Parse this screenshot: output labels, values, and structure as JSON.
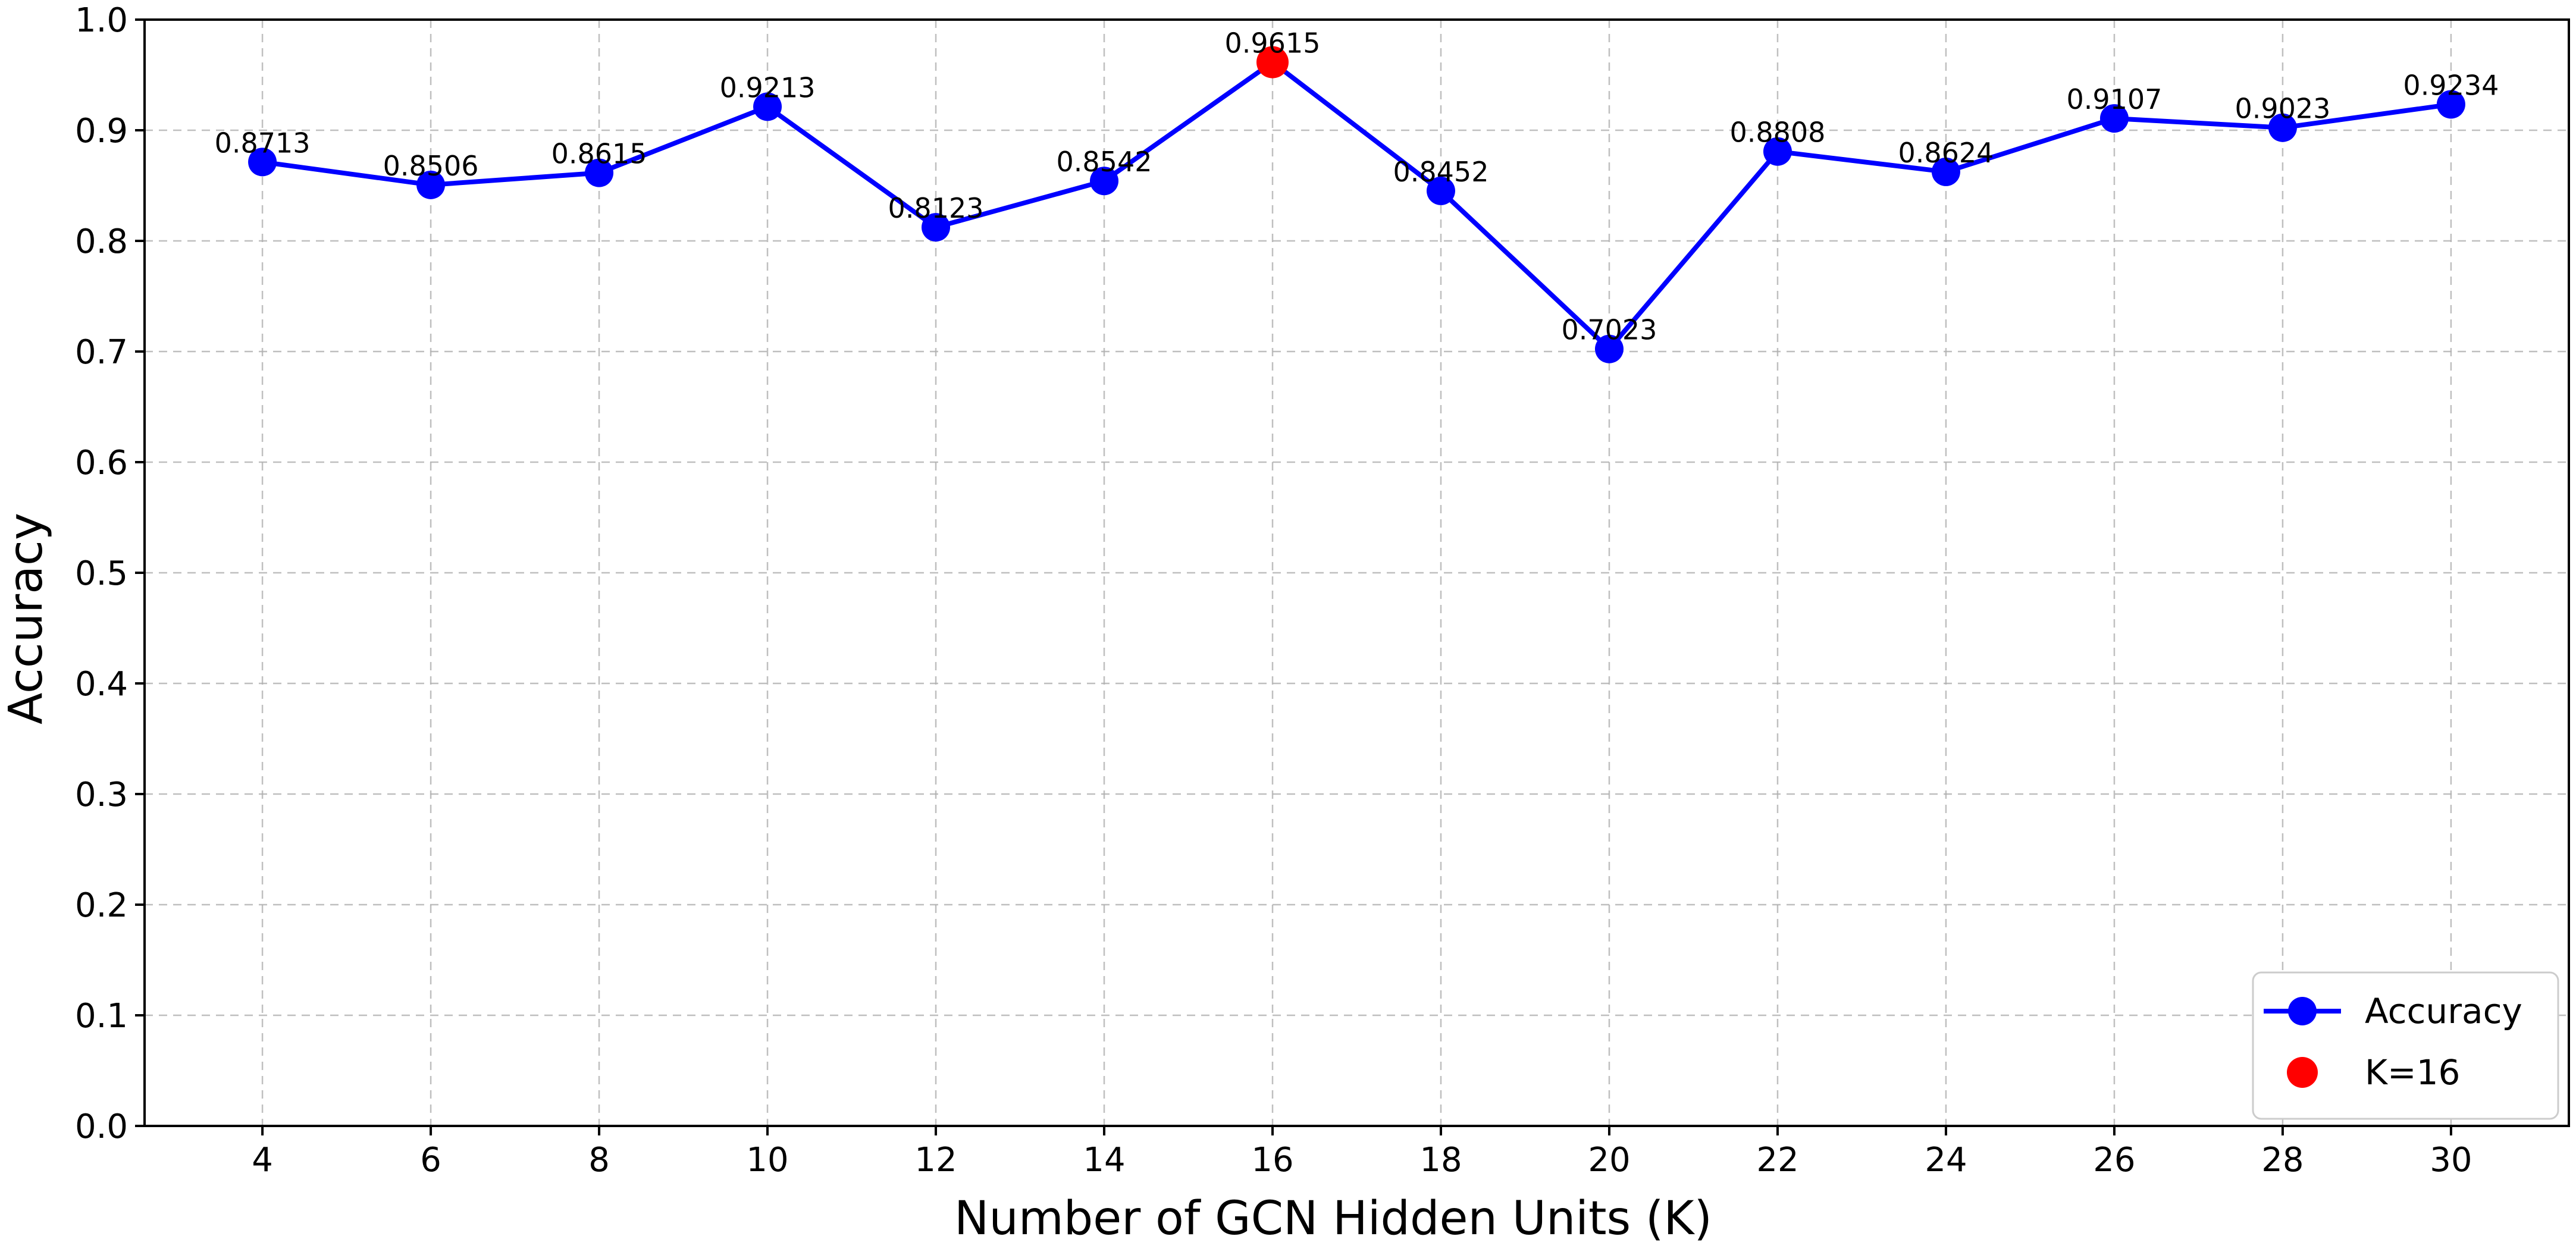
{
  "chart_data": {
    "type": "line",
    "x": [
      4,
      6,
      8,
      10,
      12,
      14,
      16,
      18,
      20,
      22,
      24,
      26,
      28,
      30
    ],
    "series": [
      {
        "name": "Accuracy",
        "values": [
          0.8713,
          0.8506,
          0.8615,
          0.9213,
          0.8123,
          0.8542,
          0.9615,
          0.8452,
          0.7023,
          0.8808,
          0.8624,
          0.9107,
          0.9023,
          0.9234
        ],
        "color": "#0000ff",
        "marker": "circle"
      }
    ],
    "highlight": {
      "name": "K=16",
      "x": 16,
      "y": 0.9615,
      "color": "#ff0000"
    },
    "data_labels": [
      "0.8713",
      "0.8506",
      "0.8615",
      "0.9213",
      "0.8123",
      "0.8542",
      "0.9615",
      "0.8452",
      "0.7023",
      "0.8808",
      "0.8624",
      "0.9107",
      "0.9023",
      "0.9234"
    ],
    "xlabel": "Number of GCN Hidden Units (K)",
    "ylabel": "Accuracy",
    "xticks": [
      "4",
      "6",
      "8",
      "10",
      "12",
      "14",
      "16",
      "18",
      "20",
      "22",
      "24",
      "26",
      "28",
      "30"
    ],
    "yticks": [
      "0.0",
      "0.1",
      "0.2",
      "0.3",
      "0.4",
      "0.5",
      "0.6",
      "0.7",
      "0.8",
      "0.9",
      "1.0"
    ],
    "xlim": [
      2.6,
      31.4
    ],
    "ylim": [
      0.0,
      1.0
    ],
    "grid": true,
    "legend": {
      "placement": "lower-right",
      "entries": [
        "Accuracy",
        "K=16"
      ]
    }
  }
}
